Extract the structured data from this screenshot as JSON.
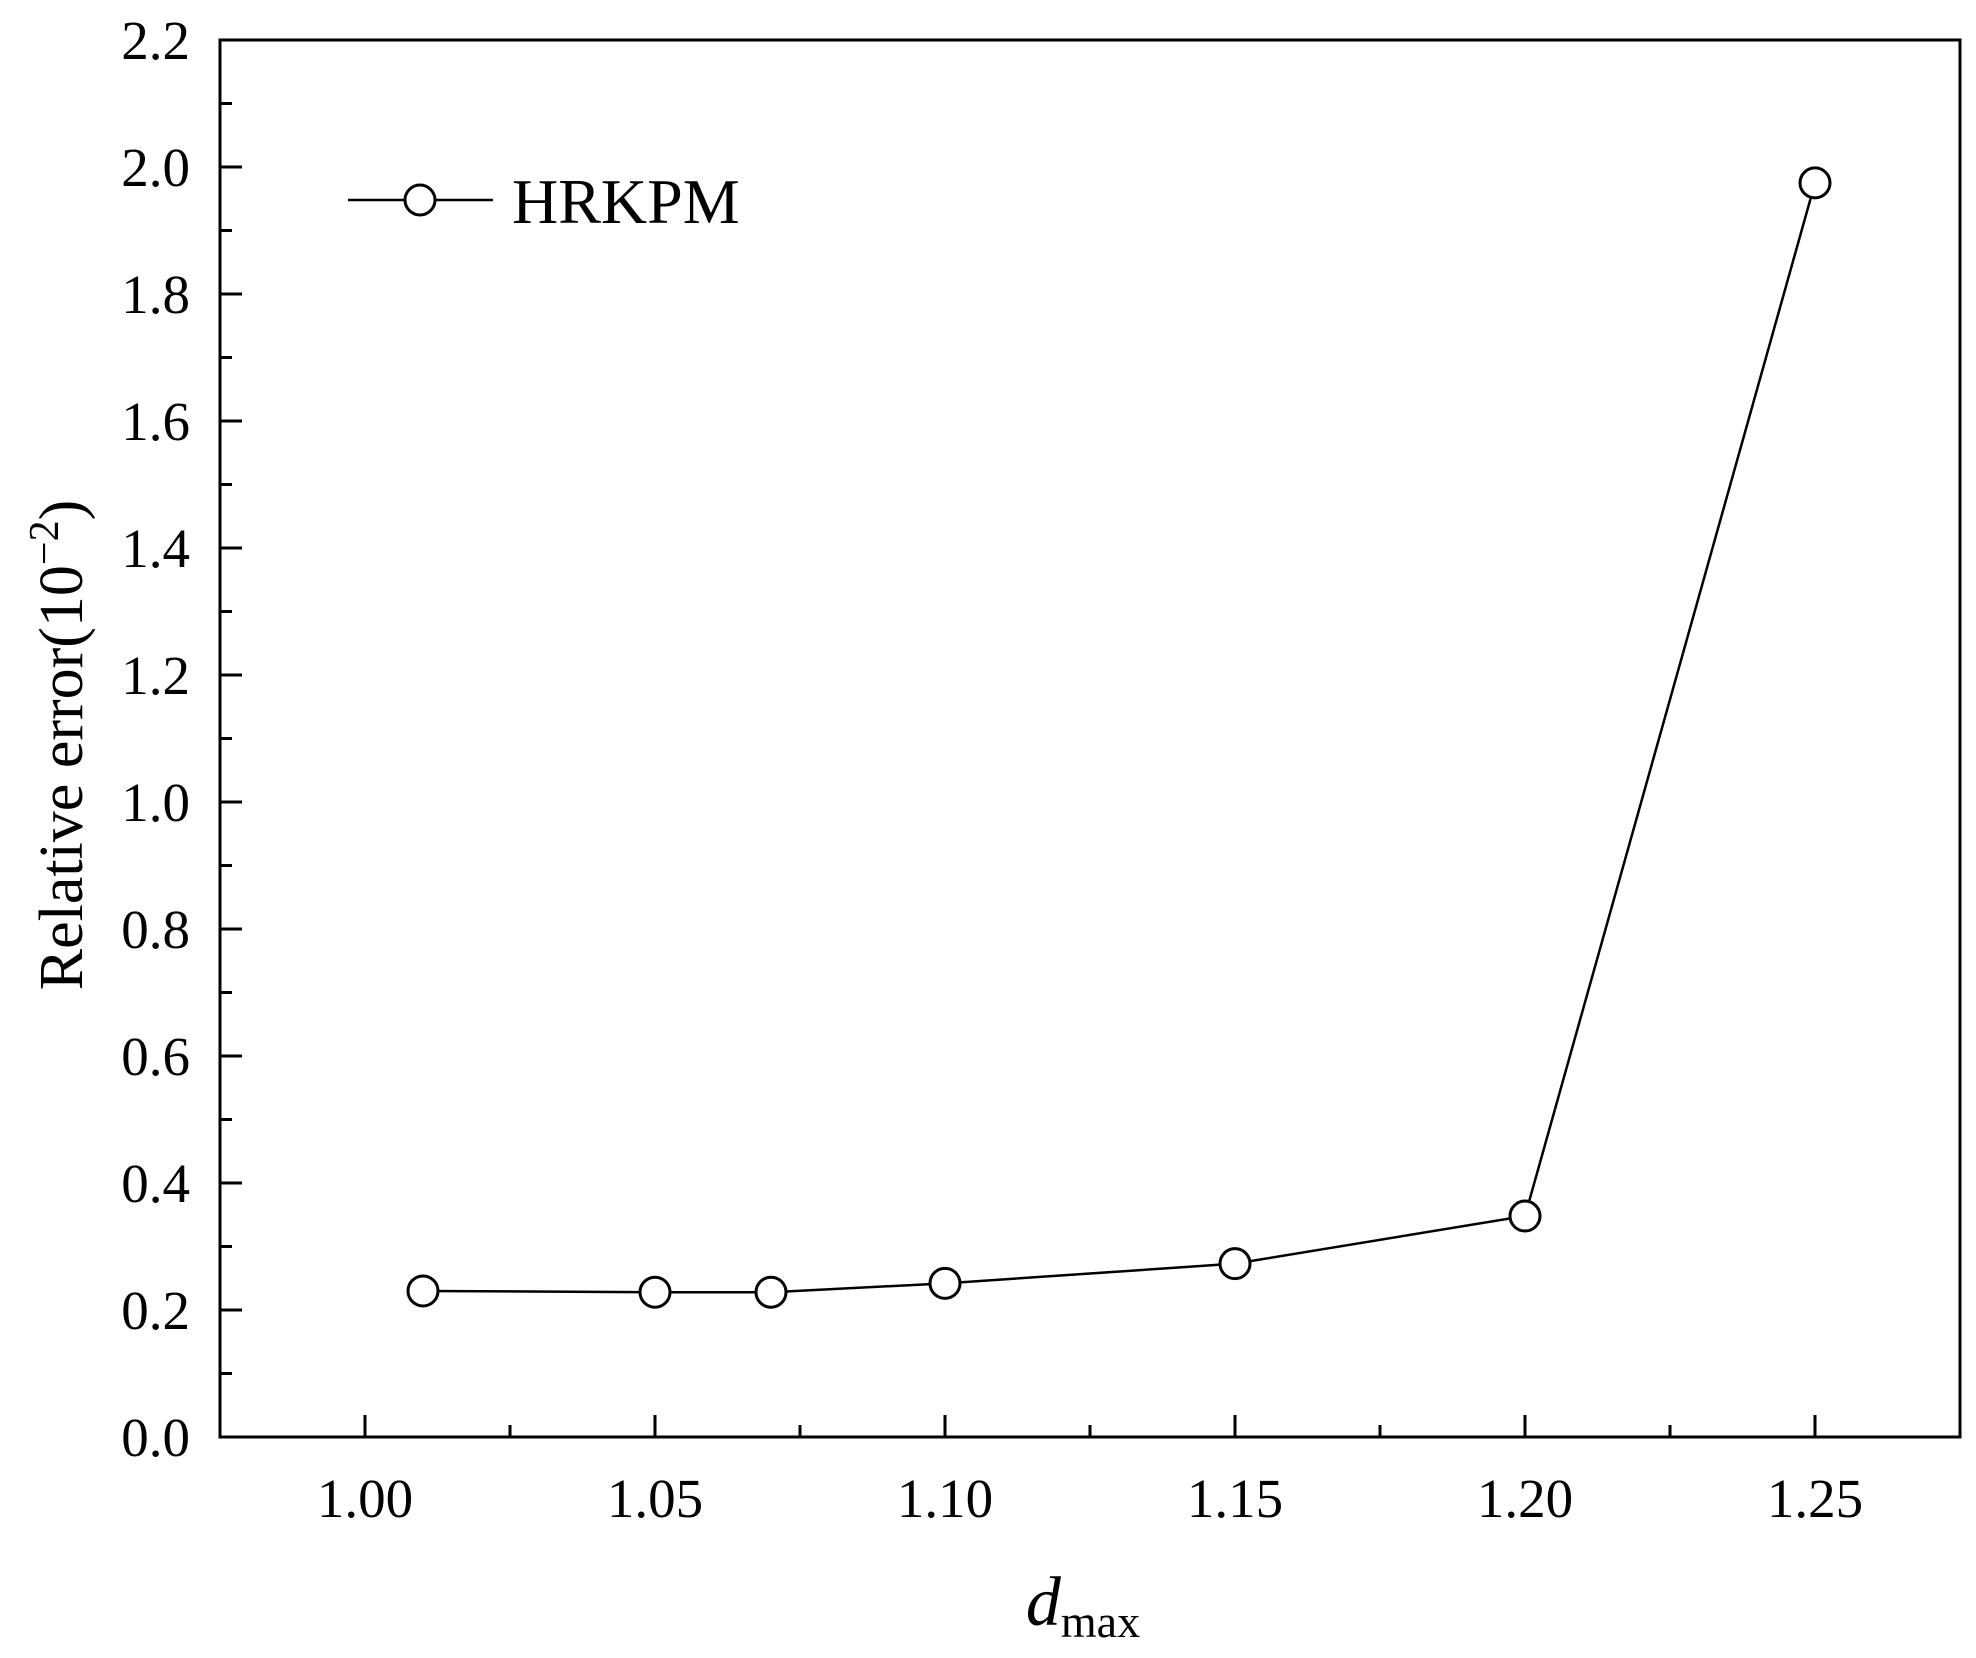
{
  "chart_data": {
    "type": "line",
    "xlabel": {
      "main": "d",
      "sub": "max"
    },
    "ylabel": {
      "main": "Relative error(10",
      "sup": "−2",
      "close": ")"
    },
    "xlim": [
      0.975,
      1.275
    ],
    "ylim": [
      0.0,
      2.2
    ],
    "x_ticks": [
      1.0,
      1.05,
      1.1,
      1.15,
      1.2,
      1.25
    ],
    "x_tick_labels": [
      "1.00",
      "1.05",
      "1.10",
      "1.15",
      "1.20",
      "1.25"
    ],
    "x_minor_ticks": [
      1.025,
      1.075,
      1.125,
      1.175,
      1.225
    ],
    "y_ticks": [
      0.0,
      0.2,
      0.4,
      0.6,
      0.8,
      1.0,
      1.2,
      1.4,
      1.6,
      1.8,
      2.0,
      2.2
    ],
    "y_tick_labels": [
      "0.0",
      "0.2",
      "0.4",
      "0.6",
      "0.8",
      "1.0",
      "1.2",
      "1.4",
      "1.6",
      "1.8",
      "2.0",
      "2.2"
    ],
    "y_minor_ticks": [
      0.1,
      0.3,
      0.5,
      0.7,
      0.9,
      1.1,
      1.3,
      1.5,
      1.7,
      1.9,
      2.1
    ],
    "grid": false,
    "legend_position": "top-left",
    "series": [
      {
        "name": "HRKPM",
        "marker": "open-circle",
        "color": "#000000",
        "x": [
          1.01,
          1.05,
          1.07,
          1.1,
          1.15,
          1.2,
          1.25
        ],
        "y": [
          0.23,
          0.228,
          0.228,
          0.242,
          0.273,
          0.348,
          1.975
        ]
      }
    ]
  }
}
